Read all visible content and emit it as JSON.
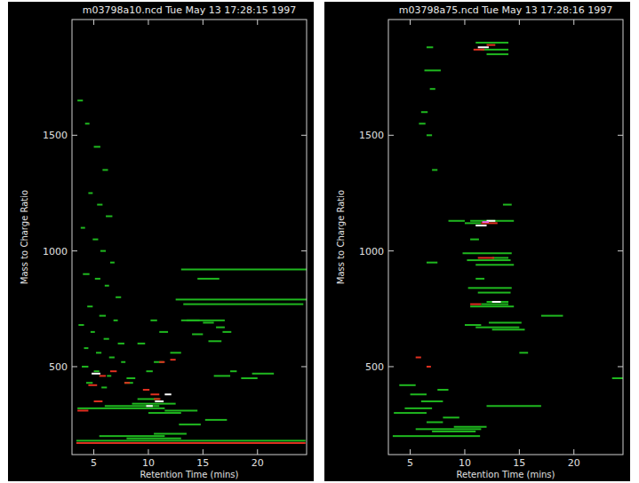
{
  "chart_data": [
    {
      "type": "scatter",
      "title": "m03798a10.ncd Tue May 13 17:28:15 1997",
      "x_label": "Retention Time (mins)",
      "y_label": "Mass to Charge Ratio",
      "xlim": [
        3,
        24.5
      ],
      "ylim": [
        120,
        2000
      ],
      "xticks": [
        5,
        10,
        15,
        20
      ],
      "yticks": [
        500,
        1000,
        1500
      ],
      "marker": "dash",
      "series": [
        {
          "color": "#1fb81f",
          "x": [
            3.5,
            4.2,
            5.0,
            5.8,
            4.5,
            5.3,
            6.1,
            3.8,
            4.9,
            5.6,
            6.5,
            4.0,
            5.1,
            6.0,
            7.0,
            4.4,
            5.5,
            6.8,
            3.6,
            4.7,
            5.9,
            7.2,
            4.1,
            5.2,
            6.4,
            7.5,
            3.9,
            5.0,
            6.2,
            8.0,
            4.3,
            5.7,
            7.8,
            9.0,
            10.2,
            11.0,
            9.8,
            10.5,
            12.0,
            13.5,
            15.0,
            16.2,
            14.0,
            15.5,
            16.8,
            17.5,
            13.0,
            12.5,
            13.2,
            13.0,
            14.5,
            16.0,
            3.5,
            6.0,
            8.5,
            10.0,
            11.5,
            9.0,
            3.4,
            5.5,
            8.0,
            10.5,
            12.8,
            15.2,
            18.5,
            19.5
          ],
          "values": [
            1650,
            1550,
            1450,
            1350,
            1250,
            1200,
            1150,
            1100,
            1050,
            1000,
            950,
            900,
            880,
            850,
            800,
            760,
            720,
            700,
            680,
            650,
            620,
            600,
            580,
            560,
            540,
            520,
            500,
            480,
            460,
            450,
            430,
            410,
            430,
            600,
            700,
            650,
            480,
            520,
            560,
            700,
            690,
            670,
            640,
            610,
            650,
            480,
            920,
            790,
            770,
            700,
            880,
            460,
            320,
            330,
            340,
            300,
            310,
            360,
            180,
            200,
            190,
            210,
            250,
            270,
            450,
            470
          ],
          "durations": [
            0.5,
            0.4,
            0.6,
            0.5,
            0.4,
            0.5,
            0.6,
            0.4,
            0.5,
            0.5,
            0.4,
            0.6,
            0.5,
            0.4,
            0.5,
            0.5,
            0.6,
            0.4,
            0.5,
            0.4,
            0.5,
            0.6,
            0.4,
            0.5,
            0.5,
            0.4,
            0.6,
            0.5,
            0.4,
            0.8,
            0.6,
            0.5,
            0.8,
            0.7,
            0.6,
            0.8,
            0.6,
            0.9,
            1.0,
            1.2,
            1.0,
            0.8,
            1.0,
            1.2,
            0.8,
            0.6,
            11.5,
            12,
            11,
            4,
            2,
            1.5,
            8,
            5,
            4,
            3,
            3,
            2,
            21,
            6,
            5,
            3,
            2,
            2,
            1.5,
            2
          ]
        },
        {
          "color": "#e03020",
          "x": [
            3.4,
            4.5,
            5.5,
            6.5,
            7.8,
            9.5,
            10.2,
            11.0,
            3.5,
            5.0,
            10.5,
            12.0
          ],
          "values": [
            170,
            420,
            460,
            480,
            430,
            400,
            380,
            520,
            310,
            350,
            360,
            530
          ],
          "durations": [
            21,
            0.8,
            0.6,
            0.6,
            0.5,
            0.6,
            0.8,
            0.5,
            1.0,
            0.8,
            0.6,
            0.5
          ]
        },
        {
          "color": "#ffffff",
          "x": [
            4.8,
            9.8,
            10.6,
            11.5
          ],
          "values": [
            470,
            330,
            350,
            380
          ],
          "durations": [
            0.8,
            0.6,
            0.8,
            0.6
          ]
        }
      ]
    },
    {
      "type": "scatter",
      "title": "m03798a75.ncd Tue May 13 17:28:16 1997",
      "x_label": "Retention Time (mins)",
      "y_label": "Mass to Charge Ratio",
      "xlim": [
        3,
        24.5
      ],
      "ylim": [
        120,
        2000
      ],
      "xticks": [
        5,
        10,
        15,
        20
      ],
      "yticks": [
        500,
        1000,
        1500
      ],
      "marker": "dash",
      "series": [
        {
          "color": "#1fb81f",
          "x": [
            6.3,
            6.5,
            6.8,
            11.0,
            11.5,
            12.0,
            10.5,
            10.0,
            9.8,
            10.2,
            11.0,
            12.5,
            10.3,
            11.2,
            12.0,
            10.5,
            11.5,
            12.2,
            10.0,
            11.0,
            12.5,
            6.5,
            8.5,
            4.0,
            5.0,
            6.0,
            7.5,
            3.5,
            4.5,
            6.5,
            8.0,
            3.4,
            5.5,
            7.0,
            9.0,
            12.0,
            15.0,
            6.5,
            7.0,
            5.8,
            17.0,
            13.5,
            23.5,
            6.0,
            10.5,
            11.0
          ],
          "values": [
            1780,
            1880,
            1700,
            1900,
            1870,
            1850,
            1130,
            1120,
            990,
            960,
            940,
            970,
            840,
            820,
            780,
            760,
            770,
            690,
            680,
            670,
            660,
            950,
            1130,
            420,
            380,
            350,
            400,
            300,
            320,
            260,
            280,
            200,
            230,
            220,
            240,
            330,
            560,
            1500,
            1350,
            1550,
            720,
            1200,
            450,
            1600,
            1050,
            880
          ],
          "durations": [
            1.5,
            0.6,
            0.5,
            3.0,
            2.5,
            2.0,
            4.0,
            1.5,
            4.5,
            4.0,
            3.5,
            1.5,
            4.0,
            3.0,
            2.0,
            4.0,
            2.5,
            3.0,
            1.5,
            4.0,
            3.0,
            1.0,
            1.5,
            1.5,
            1.5,
            2.0,
            1.0,
            3.0,
            2.5,
            1.5,
            1.5,
            8.0,
            6.0,
            4.0,
            3.0,
            5.0,
            0.8,
            0.5,
            0.5,
            0.6,
            2.0,
            0.8,
            1.5,
            0.6,
            0.8,
            0.8
          ]
        },
        {
          "color": "#e03020",
          "x": [
            10.8,
            11.5,
            11.2,
            10.5,
            5.5,
            6.5,
            12.0
          ],
          "values": [
            1870,
            1120,
            970,
            770,
            540,
            500,
            1890
          ],
          "durations": [
            1.0,
            1.5,
            1.5,
            1.0,
            0.5,
            0.4,
            0.8
          ]
        },
        {
          "color": "#ffffff",
          "x": [
            11.2,
            12.0,
            11.0,
            12.5
          ],
          "values": [
            1880,
            1130,
            1110,
            780
          ],
          "durations": [
            1.0,
            0.8,
            1.0,
            0.8
          ]
        },
        {
          "color": "#e060e0",
          "x": [
            11.6
          ],
          "values": [
            1125
          ],
          "durations": [
            0.6
          ]
        }
      ]
    }
  ]
}
